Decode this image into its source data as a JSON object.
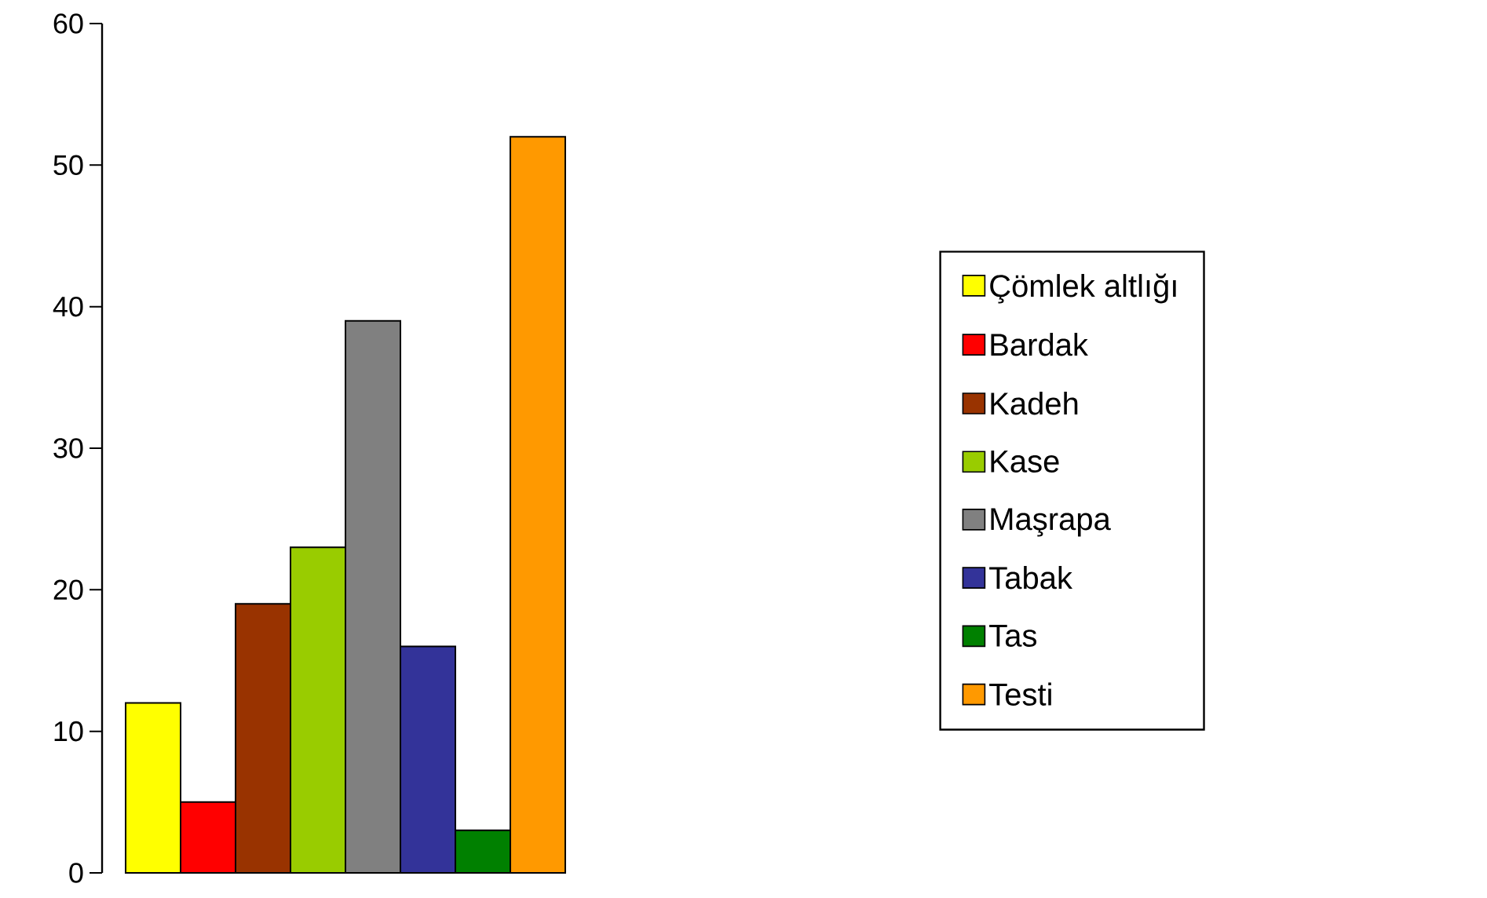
{
  "chart_data": {
    "type": "bar",
    "categories": [
      null
    ],
    "series": [
      {
        "name": "Çömlek altlığı",
        "color": "#ffff00",
        "values": [
          12
        ]
      },
      {
        "name": "Bardak",
        "color": "#ff0000",
        "values": [
          5
        ]
      },
      {
        "name": "Kadeh",
        "color": "#993300",
        "values": [
          19
        ]
      },
      {
        "name": "Kase",
        "color": "#99cc00",
        "values": [
          23
        ]
      },
      {
        "name": "Maşrapa",
        "color": "#808080",
        "values": [
          39
        ]
      },
      {
        "name": "Tabak",
        "color": "#333399",
        "values": [
          16
        ]
      },
      {
        "name": "Tas",
        "color": "#008000",
        "values": [
          3
        ]
      },
      {
        "name": "Testi",
        "color": "#ff9900",
        "values": [
          52
        ]
      }
    ],
    "ylim": [
      0,
      60
    ],
    "yticks": [
      0,
      10,
      20,
      30,
      40,
      50,
      60
    ],
    "grid": false,
    "legend": "right"
  }
}
